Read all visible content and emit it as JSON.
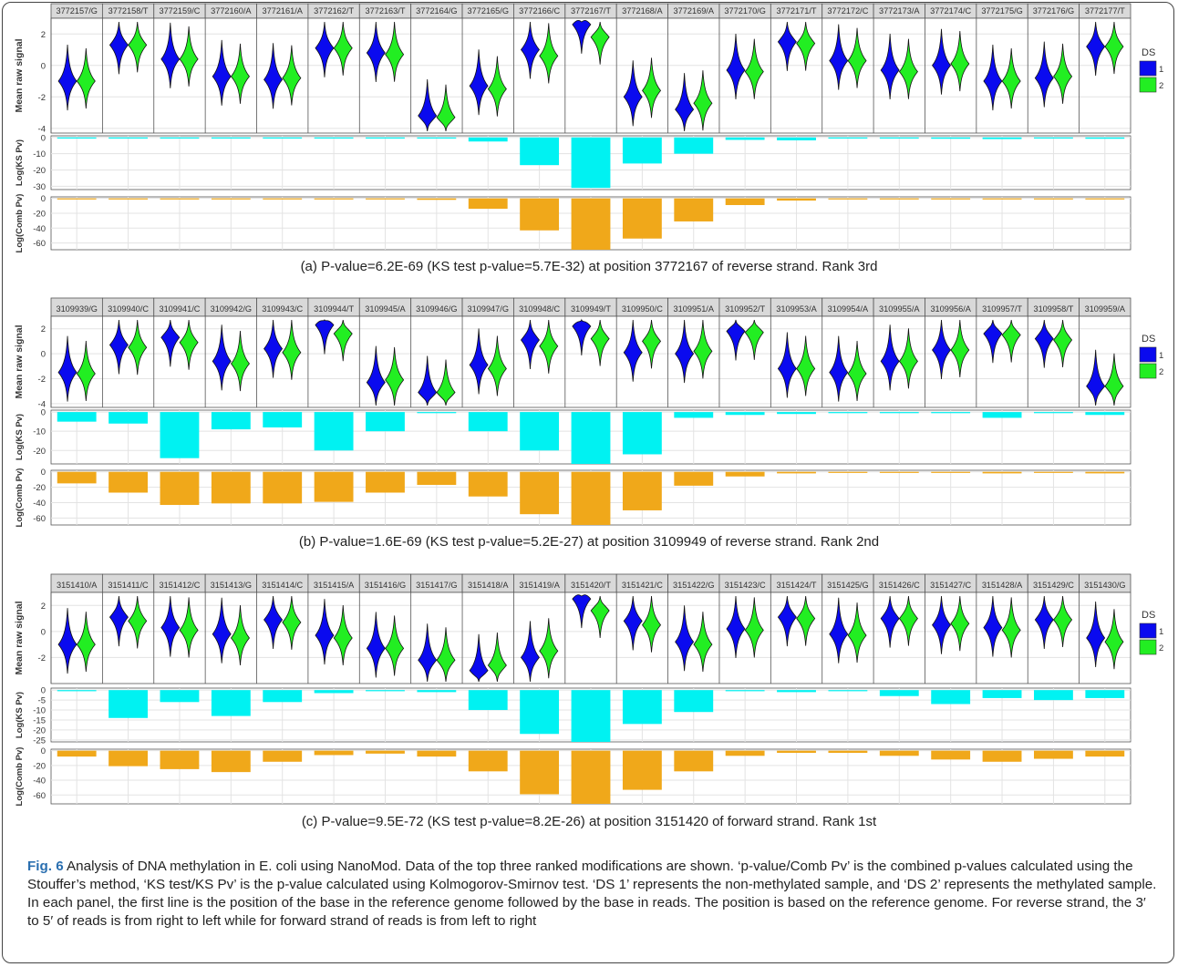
{
  "legend": {
    "title": "DS",
    "items": [
      "1",
      "2"
    ],
    "colors": [
      "#0a0aef",
      "#22ee22"
    ]
  },
  "colors": {
    "ks_bar": "#00f2f2",
    "comb_bar": "#f0a81a",
    "strip": "#d9d9d9",
    "grid": "#e3e3e3"
  },
  "axis_labels": {
    "violin": "Mean raw signal",
    "ks": "Log(KS Pv)",
    "comb": "Log(Comb Pv)"
  },
  "panels": [
    {
      "caption": "(a) P-value=6.2E-69 (KS test p-value=5.7E-32) at position 3772167 of reverse strand. Rank 3rd",
      "positions": [
        "3772157/G",
        "3772158/T",
        "3772159/C",
        "3772160/A",
        "3772161/A",
        "3772162/T",
        "3772163/T",
        "3772164/G",
        "3772165/G",
        "3772166/C",
        "3772167/T",
        "3772168/A",
        "3772169/A",
        "3772170/G",
        "3772171/T",
        "3772172/C",
        "3772173/A",
        "3772174/C",
        "3772175/G",
        "3772176/G",
        "3772177/T"
      ],
      "violin_ticks": [
        2,
        0,
        -2,
        -4
      ],
      "violin_ylim": [
        -4.3,
        3.0
      ],
      "ds1_means": [
        -1.0,
        1.3,
        0.4,
        -0.7,
        -0.9,
        1.1,
        0.8,
        -3.2,
        -1.3,
        1.0,
        2.6,
        -2.0,
        -2.8,
        -0.3,
        1.5,
        0.3,
        -0.3,
        0.0,
        -1.0,
        -0.8,
        1.2
      ],
      "ds2_means": [
        -1.0,
        1.3,
        0.4,
        -0.7,
        -0.8,
        1.1,
        0.7,
        -3.3,
        -1.5,
        0.6,
        1.8,
        -1.6,
        -2.4,
        -0.4,
        1.4,
        0.3,
        -0.4,
        0.1,
        -1.0,
        -0.7,
        1.2
      ],
      "ks_ticks": [
        0,
        -10,
        -20,
        -30
      ],
      "ks_ylim": [
        -32,
        1
      ],
      "ks_values": [
        -0.5,
        -0.5,
        -0.5,
        -0.5,
        -0.5,
        -0.5,
        -0.5,
        -0.5,
        -2.5,
        -17,
        -31,
        -16,
        -10,
        -1.5,
        -1.8,
        -0.5,
        -0.5,
        -0.8,
        -1.0,
        -0.5,
        -0.8
      ],
      "comb_ticks": [
        0,
        -20,
        -40,
        -60
      ],
      "comb_ylim": [
        -69,
        2
      ],
      "comb_values": [
        -1,
        -1,
        -1,
        -1,
        -1,
        -1,
        -1,
        -2,
        -14,
        -43,
        -69,
        -54,
        -31,
        -9,
        -3,
        -1,
        -1,
        -1,
        -1,
        -1,
        -1
      ]
    },
    {
      "caption": "(b) P-value=1.6E-69 (KS test p-value=5.2E-27) at position 3109949 of reverse strand. Rank 2nd",
      "positions": [
        "3109939/G",
        "3109940/C",
        "3109941/C",
        "3109942/G",
        "3109943/C",
        "3109944/T",
        "3109945/A",
        "3109946/G",
        "3109947/G",
        "3109948/C",
        "3109949/T",
        "3109950/C",
        "3109951/A",
        "3109952/T",
        "3109953/A",
        "3109954/A",
        "3109955/A",
        "3109956/A",
        "3109957/T",
        "3109958/T",
        "3109959/A"
      ],
      "violin_ticks": [
        2,
        0,
        -2,
        -4
      ],
      "violin_ylim": [
        -4.3,
        3.0
      ],
      "ds1_means": [
        -1.5,
        0.7,
        1.3,
        -0.6,
        0.4,
        2.3,
        -2.3,
        -3.1,
        -0.9,
        1.1,
        2.2,
        0.1,
        0.0,
        1.8,
        -1.2,
        -1.5,
        -0.6,
        0.3,
        1.6,
        1.2,
        -2.6
      ],
      "ds2_means": [
        -1.6,
        0.5,
        0.9,
        -0.8,
        0.1,
        1.6,
        -2.1,
        -3.1,
        -1.2,
        0.6,
        1.2,
        1.0,
        0.2,
        1.7,
        -1.2,
        -1.6,
        -0.6,
        0.3,
        1.5,
        1.1,
        -2.6
      ],
      "ks_ticks": [
        0,
        -10,
        -20
      ],
      "ks_ylim": [
        -27,
        1
      ],
      "ks_values": [
        -5,
        -6,
        -24,
        -9,
        -8,
        -20,
        -10,
        -0.5,
        -10,
        -20,
        -27,
        -22,
        -3,
        -1.5,
        -1,
        -0.5,
        -0.5,
        -0.5,
        -3,
        -0.5,
        -1.5
      ],
      "comb_ticks": [
        0,
        -20,
        -40,
        -60
      ],
      "comb_ylim": [
        -69,
        2
      ],
      "comb_values": [
        -15,
        -27,
        -43,
        -41,
        -41,
        -39,
        -27,
        -17,
        -32,
        -55,
        -69,
        -50,
        -18,
        -6,
        -2,
        -1,
        -1,
        -1,
        -2,
        -1,
        -2
      ]
    },
    {
      "caption": "(c) P-value=9.5E-72 (KS test p-value=8.2E-26) at position 3151420 of forward strand. Rank 1st",
      "positions": [
        "3151410/A",
        "3151411/C",
        "3151412/C",
        "3151413/G",
        "3151414/C",
        "3151415/A",
        "3151416/G",
        "3151417/G",
        "3151418/A",
        "3151419/A",
        "3151420/T",
        "3151421/C",
        "3151422/G",
        "3151423/C",
        "3151424/T",
        "3151425/G",
        "3151426/C",
        "3151427/C",
        "3151428/A",
        "3151429/C",
        "3151430/G"
      ],
      "violin_ticks": [
        2,
        0,
        -2
      ],
      "violin_ylim": [
        -4.0,
        3.0
      ],
      "ds1_means": [
        -1.0,
        1.1,
        0.3,
        -0.2,
        0.9,
        -0.3,
        -1.3,
        -2.2,
        -3.0,
        -2.0,
        2.5,
        0.8,
        -0.8,
        0.2,
        1.1,
        -0.2,
        1.0,
        0.5,
        0.3,
        0.9,
        -0.5
      ],
      "ds2_means": [
        -1.0,
        0.8,
        0.1,
        -0.5,
        0.7,
        -0.5,
        -1.3,
        -2.2,
        -2.6,
        -1.5,
        1.6,
        0.5,
        -1.0,
        0.1,
        1.0,
        -0.3,
        1.0,
        0.6,
        0.1,
        0.9,
        -0.8
      ],
      "ks_ticks": [
        0,
        -5,
        -10,
        -15,
        -20,
        -25
      ],
      "ks_ylim": [
        -26,
        1
      ],
      "ks_values": [
        -0.5,
        -14,
        -6,
        -13,
        -6,
        -1.5,
        -0.5,
        -1,
        -10,
        -22,
        -26,
        -17,
        -11,
        -0.5,
        -1,
        -0.5,
        -3,
        -7,
        -4,
        -5,
        -4
      ],
      "comb_ticks": [
        0,
        -20,
        -40,
        -60
      ],
      "comb_ylim": [
        -72,
        2
      ],
      "comb_values": [
        -8,
        -21,
        -25,
        -29,
        -15,
        -6,
        -4,
        -8,
        -28,
        -59,
        -72,
        -53,
        -28,
        -7,
        -3,
        -3,
        -7,
        -12,
        -15,
        -11,
        -8
      ]
    }
  ],
  "fig_caption": {
    "label": "Fig. 6",
    "text": " Analysis of DNA methylation in E. coli using NanoMod. Data of the top three ranked modifications are shown. ‘p-value/Comb Pv’ is the combined p-values calculated using the Stouffer’s method, ‘KS test/KS Pv’ is the p-value calculated using Kolmogorov-Smirnov test. ‘DS 1’ represents the non-methylated sample, and ‘DS 2’ represents the methylated sample. In each panel, the first line is the position of the base in the reference genome followed by the base in reads. The position is based on the reference genome. For reverse strand, the 3′ to 5′ of reads is from right to left while for forward strand of reads is from left to right"
  }
}
